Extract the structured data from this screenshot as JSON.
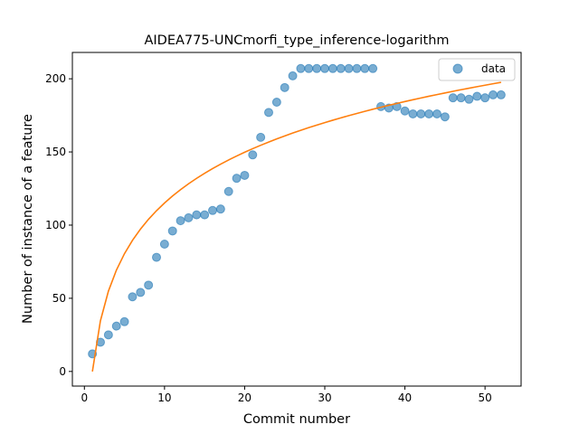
{
  "chart_data": {
    "type": "scatter",
    "title": "AIDEA775-UNCmorfi_type_inference-logarithm",
    "xlabel": "Commit number",
    "ylabel": "Number of instance of a feature",
    "xlim": [
      -1.5,
      54.5
    ],
    "ylim": [
      -10,
      218
    ],
    "xticks": [
      0,
      10,
      20,
      30,
      40,
      50
    ],
    "yticks": [
      0,
      50,
      100,
      150,
      200
    ],
    "legend_position": "top-right",
    "grid": false,
    "series": [
      {
        "name": "data",
        "kind": "scatter",
        "color": "#1f77b4",
        "x": [
          1,
          2,
          3,
          4,
          5,
          6,
          7,
          8,
          9,
          10,
          11,
          12,
          13,
          14,
          15,
          16,
          17,
          18,
          19,
          20,
          21,
          22,
          23,
          24,
          25,
          26,
          27,
          28,
          29,
          30,
          31,
          32,
          33,
          34,
          35,
          36,
          37,
          38,
          39,
          40,
          41,
          42,
          43,
          44,
          45,
          46,
          47,
          48,
          49,
          50,
          51,
          52
        ],
        "y": [
          12,
          20,
          25,
          31,
          34,
          51,
          54,
          59,
          78,
          87,
          96,
          103,
          105,
          107,
          107,
          110,
          111,
          123,
          132,
          134,
          148,
          160,
          177,
          184,
          194,
          202,
          207,
          207,
          207,
          207,
          207,
          207,
          207,
          207,
          207,
          207,
          181,
          180,
          181,
          178,
          176,
          176,
          176,
          176,
          174,
          187,
          187,
          186,
          188,
          187,
          189,
          189
        ]
      },
      {
        "name": "",
        "kind": "line",
        "color": "#ff7f0e",
        "fit": {
          "model": "a*ln(x)+b",
          "a": 50,
          "b": 0
        }
      }
    ]
  }
}
